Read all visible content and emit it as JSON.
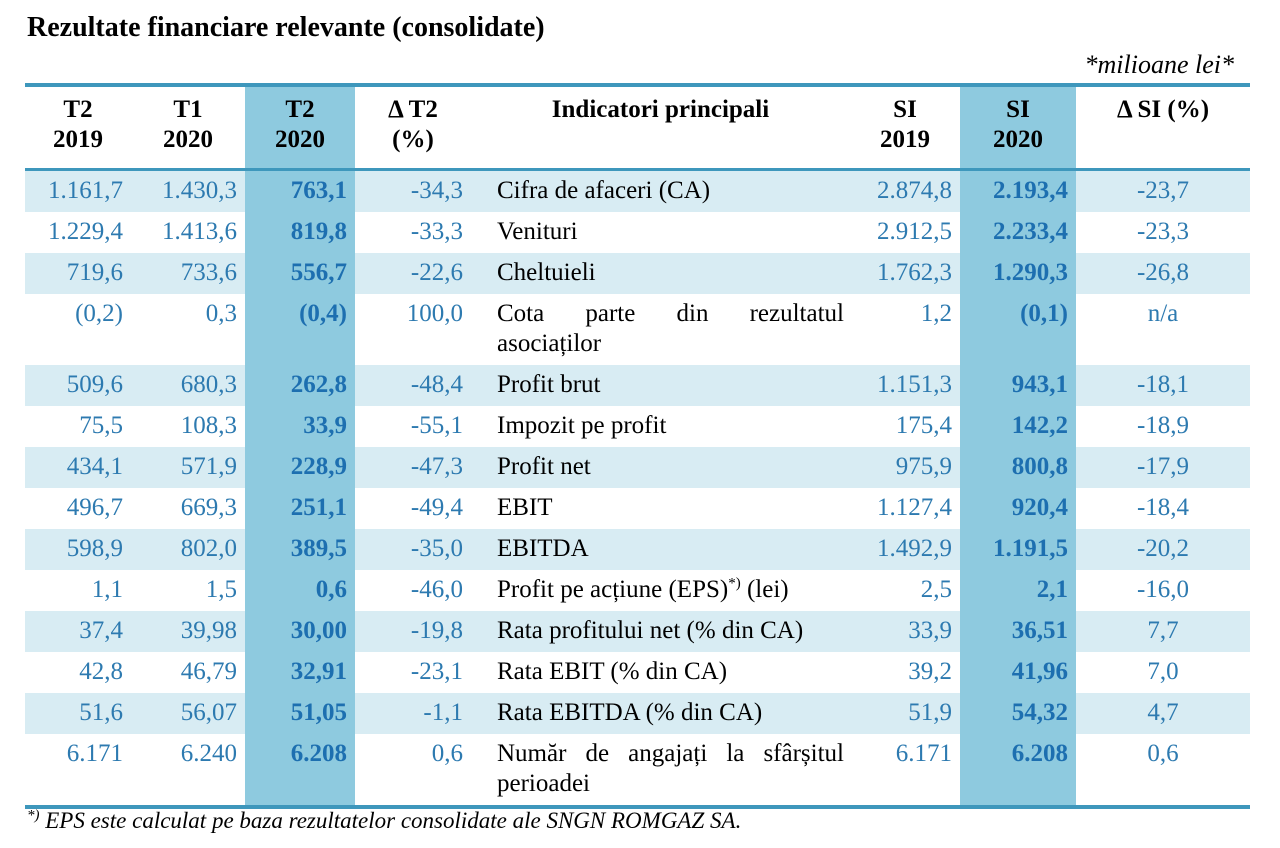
{
  "title": "Rezultate financiare relevante (consolidate)",
  "units": "*milioane lei*",
  "headers": {
    "t2_2019": [
      "T2",
      "2019"
    ],
    "t1_2020": [
      "T1",
      "2020"
    ],
    "t2_2020": [
      "T2",
      "2020"
    ],
    "delta_t2": [
      "Δ T2",
      "(%)"
    ],
    "indicator": "Indicatori principali",
    "si_2019": [
      "SI",
      "2019"
    ],
    "si_2020": [
      "SI",
      "2020"
    ],
    "delta_si": "Δ SI (%)"
  },
  "rows": [
    {
      "t2_2019": "1.161,7",
      "t1_2020": "1.430,3",
      "t2_2020": "763,1",
      "delta_t2": "-34,3",
      "indicator": "Cifra de afaceri (CA)",
      "si_2019": "2.874,8",
      "si_2020": "2.193,4",
      "delta_si": "-23,7"
    },
    {
      "t2_2019": "1.229,4",
      "t1_2020": "1.413,6",
      "t2_2020": "819,8",
      "delta_t2": "-33,3",
      "indicator": "Venituri",
      "si_2019": "2.912,5",
      "si_2020": "2.233,4",
      "delta_si": "-23,3"
    },
    {
      "t2_2019": "719,6",
      "t1_2020": "733,6",
      "t2_2020": "556,7",
      "delta_t2": "-22,6",
      "indicator": "Cheltuieli",
      "si_2019": "1.762,3",
      "si_2020": "1.290,3",
      "delta_si": "-26,8"
    },
    {
      "t2_2019": "(0,2)",
      "t1_2020": "0,3",
      "t2_2020": "(0,4)",
      "delta_t2": "100,0",
      "indicator": "Cota parte din rezultatul asociaților",
      "si_2019": "1,2",
      "si_2020": "(0,1)",
      "delta_si": "n/a"
    },
    {
      "t2_2019": "509,6",
      "t1_2020": "680,3",
      "t2_2020": "262,8",
      "delta_t2": "-48,4",
      "indicator": "Profit brut",
      "si_2019": "1.151,3",
      "si_2020": "943,1",
      "delta_si": "-18,1"
    },
    {
      "t2_2019": "75,5",
      "t1_2020": "108,3",
      "t2_2020": "33,9",
      "delta_t2": "-55,1",
      "indicator": "Impozit pe profit",
      "si_2019": "175,4",
      "si_2020": "142,2",
      "delta_si": "-18,9"
    },
    {
      "t2_2019": "434,1",
      "t1_2020": "571,9",
      "t2_2020": "228,9",
      "delta_t2": "-47,3",
      "indicator": "Profit net",
      "si_2019": "975,9",
      "si_2020": "800,8",
      "delta_si": "-17,9"
    },
    {
      "t2_2019": "496,7",
      "t1_2020": "669,3",
      "t2_2020": "251,1",
      "delta_t2": "-49,4",
      "indicator": "EBIT",
      "si_2019": "1.127,4",
      "si_2020": "920,4",
      "delta_si": "-18,4"
    },
    {
      "t2_2019": "598,9",
      "t1_2020": "802,0",
      "t2_2020": "389,5",
      "delta_t2": "-35,0",
      "indicator": "EBITDA",
      "si_2019": "1.492,9",
      "si_2020": "1.191,5",
      "delta_si": "-20,2"
    },
    {
      "t2_2019": "1,1",
      "t1_2020": "1,5",
      "t2_2020": "0,6",
      "delta_t2": "-46,0",
      "indicator": "Profit pe acțiune (EPS)",
      "indicator_sup": "*)",
      "indicator_suffix": " (lei)",
      "si_2019": "2,5",
      "si_2020": "2,1",
      "delta_si": "-16,0"
    },
    {
      "t2_2019": "37,4",
      "t1_2020": "39,98",
      "t2_2020": "30,00",
      "delta_t2": "-19,8",
      "indicator": "Rata profitului net (% din CA)",
      "si_2019": "33,9",
      "si_2020": "36,51",
      "delta_si": "7,7"
    },
    {
      "t2_2019": "42,8",
      "t1_2020": "46,79",
      "t2_2020": "32,91",
      "delta_t2": "-23,1",
      "indicator": "Rata EBIT (% din CA)",
      "si_2019": "39,2",
      "si_2020": "41,96",
      "delta_si": "7,0"
    },
    {
      "t2_2019": "51,6",
      "t1_2020": "56,07",
      "t2_2020": "51,05",
      "delta_t2": "-1,1",
      "indicator": "Rata EBITDA (% din CA)",
      "si_2019": "51,9",
      "si_2020": "54,32",
      "delta_si": "4,7"
    },
    {
      "t2_2019": "6.171",
      "t1_2020": "6.240",
      "t2_2020": "6.208",
      "delta_t2": "0,6",
      "indicator": "Număr de angajați la sfârșitul perioadei",
      "si_2019": "6.171",
      "si_2020": "6.208",
      "delta_si": "0,6"
    }
  ],
  "footnote": {
    "marker": "*)",
    "text": " EPS este calculat pe baza rezultatelor consolidate ale SNGN ROMGAZ SA."
  },
  "colors": {
    "accent_line": "#3e97bc",
    "row_shade": "#d8ecf3",
    "highlight_column": "#8ecadf",
    "number_blue": "#2d7ab0"
  }
}
